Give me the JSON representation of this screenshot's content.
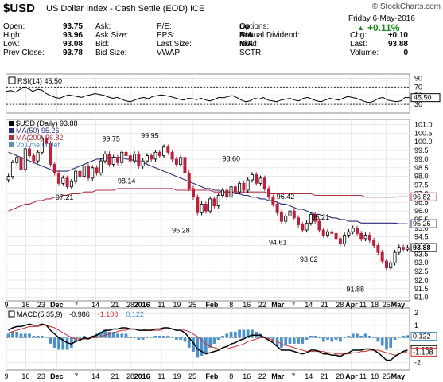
{
  "header": {
    "symbol": "$USD",
    "name": "US Dollar Index - Cash Settle (EOD)",
    "exchange": "ICE",
    "brand": "© StockCharts.com",
    "date": "Friday  6-May-2016",
    "change_pct": "+0.11%",
    "fields": [
      {
        "label": "Open:",
        "value": "93.75"
      },
      {
        "label": "High:",
        "value": "93.96"
      },
      {
        "label": "Low:",
        "value": "93.08"
      },
      {
        "label": "Prev Close:",
        "value": "93.78"
      },
      {
        "label": "Ask:",
        "value": ""
      },
      {
        "label": "Ask Size:",
        "value": ""
      },
      {
        "label": "Bid:",
        "value": ""
      },
      {
        "label": "Bid Size:",
        "value": ""
      },
      {
        "label": "P/E:",
        "value": ""
      },
      {
        "label": "EPS:",
        "value": ""
      },
      {
        "label": "Last Size:",
        "value": ""
      },
      {
        "label": "VWAP:",
        "value": ""
      },
      {
        "label": "Options:",
        "value": "no"
      },
      {
        "label": "Annual Dividend:",
        "value": "N/A"
      },
      {
        "label": "Yield:",
        "value": "N/A"
      },
      {
        "label": "SCTR:",
        "value": ""
      },
      {
        "label": "Chg:",
        "value": "+0.10"
      },
      {
        "label": "Last:",
        "value": "93.88"
      },
      {
        "label": "Volume:",
        "value": "0"
      }
    ]
  },
  "chart_data": [
    {
      "type": "line",
      "panel": "rsi",
      "legend": "RSI(14) 45.50",
      "ylim": [
        10,
        100
      ],
      "yticks": [
        30,
        50,
        70,
        90
      ],
      "ref_lines": [
        30,
        70
      ],
      "last_value": "45.50",
      "values": [
        60,
        62,
        58,
        64,
        70,
        66,
        60,
        65,
        63,
        55,
        50,
        46,
        44,
        48,
        52,
        50,
        48,
        46,
        50,
        52,
        55,
        53,
        51,
        47,
        44,
        46,
        42,
        38,
        36,
        40,
        44,
        46,
        43,
        48,
        50,
        52,
        50,
        48,
        45,
        42,
        40,
        44,
        43,
        41,
        44,
        40,
        38,
        42,
        46,
        45,
        48,
        50,
        46,
        40,
        36,
        38,
        44,
        42,
        46,
        40,
        38,
        36,
        40,
        42,
        44,
        40,
        38,
        44,
        46,
        42,
        38,
        36,
        40,
        44,
        42,
        40,
        44,
        48,
        46,
        44,
        40,
        36,
        34,
        38,
        44,
        46,
        40,
        38,
        36,
        38,
        46,
        45.5
      ]
    },
    {
      "type": "candlestick",
      "panel": "price",
      "legend": [
        "$USD (Daily) 93.88",
        "MA(50) 95.26",
        "MA(200) 96.82",
        "Volume undef"
      ],
      "ylim": [
        90.8,
        101.3
      ],
      "yticks": [
        91.0,
        91.5,
        92.0,
        92.5,
        93.0,
        93.5,
        94.0,
        94.5,
        95.0,
        95.5,
        96.0,
        96.5,
        97.0,
        97.5,
        98.0,
        98.5,
        99.0,
        99.5,
        100.0,
        100.5,
        101.0
      ],
      "annotations": [
        {
          "i": 15,
          "v": 97.21,
          "label": "97.21",
          "pos": "below"
        },
        {
          "i": 27,
          "v": 99.75,
          "label": "99.75",
          "pos": "above"
        },
        {
          "i": 31,
          "v": 98.14,
          "label": "98.14",
          "pos": "below"
        },
        {
          "i": 37,
          "v": 99.95,
          "label": "99.95",
          "pos": "above"
        },
        {
          "i": 45,
          "v": 95.28,
          "label": "95.28",
          "pos": "below"
        },
        {
          "i": 58,
          "v": 98.6,
          "label": "98.60",
          "pos": "above"
        },
        {
          "i": 70,
          "v": 94.61,
          "label": "94.61",
          "pos": "below"
        },
        {
          "i": 72,
          "v": 96.42,
          "label": "96.42",
          "pos": "above"
        },
        {
          "i": 78,
          "v": 93.62,
          "label": "93.62",
          "pos": "below"
        },
        {
          "i": 81,
          "v": 95.21,
          "label": "95.21",
          "pos": "above"
        },
        {
          "i": 90,
          "v": 91.88,
          "label": "91.88",
          "pos": "below"
        }
      ],
      "price_tags": [
        {
          "label": "96.82",
          "v": 96.82
        },
        {
          "label": "95.26",
          "v": 95.26
        },
        {
          "label": "93.88",
          "v": 93.88
        }
      ],
      "close": [
        98.0,
        98.8,
        99.1,
        98.4,
        99.6,
        99.2,
        98.9,
        99.4,
        100.2,
        99.9,
        98.7,
        98.2,
        97.6,
        97.9,
        97.4,
        97.7,
        98.3,
        98.0,
        98.6,
        97.9,
        98.5,
        98.2,
        98.9,
        99.3,
        98.7,
        99.1,
        98.8,
        99.4,
        99.2,
        98.9,
        99.3,
        98.6,
        98.9,
        99.2,
        99.0,
        99.4,
        99.2,
        99.7,
        99.4,
        99.0,
        98.7,
        99.1,
        98.2,
        97.3,
        96.8,
        95.9,
        96.4,
        96.0,
        96.7,
        96.3,
        96.9,
        97.2,
        96.8,
        97.4,
        97.1,
        97.6,
        97.2,
        97.8,
        98.1,
        97.6,
        97.9,
        97.3,
        96.8,
        96.4,
        95.9,
        95.4,
        95.7,
        96.0,
        95.6,
        95.2,
        94.9,
        95.3,
        95.8,
        95.4,
        94.9,
        94.6,
        94.8,
        94.7,
        94.4,
        94.1,
        94.6,
        94.8,
        95.0,
        94.7,
        94.4,
        94.6,
        94.3,
        94.0,
        93.6,
        93.1,
        92.7,
        93.0,
        93.6,
        93.9,
        93.78,
        93.88
      ],
      "ma50": [
        99.4,
        99.3,
        99.2,
        99.1,
        99.0,
        98.9,
        98.8,
        98.7,
        98.6,
        98.5,
        98.4,
        98.3,
        98.3,
        98.3,
        98.3,
        98.4,
        98.5,
        98.6,
        98.7,
        98.8,
        98.9,
        99.0,
        99.0,
        99.1,
        99.1,
        99.1,
        99.1,
        99.1,
        99.0,
        99.0,
        98.9,
        98.9,
        98.8,
        98.7,
        98.6,
        98.5,
        98.4,
        98.3,
        98.2,
        98.1,
        98.0,
        97.9,
        97.8,
        97.7,
        97.6,
        97.5,
        97.4,
        97.3,
        97.3,
        97.2,
        97.2,
        97.1,
        97.1,
        97.1,
        97.0,
        97.0,
        96.9,
        96.9,
        96.8,
        96.8,
        96.7,
        96.7,
        96.6,
        96.6,
        96.5,
        96.4,
        96.4,
        96.3,
        96.2,
        96.1,
        96.1,
        96.0,
        95.9,
        95.8,
        95.8,
        95.7,
        95.7,
        95.6,
        95.6,
        95.5,
        95.5,
        95.4,
        95.4,
        95.4,
        95.3,
        95.3,
        95.3,
        95.3,
        95.3,
        95.3,
        95.3,
        95.3,
        95.3,
        95.26,
        95.26,
        95.26
      ],
      "ma200": [
        96.0,
        96.1,
        96.2,
        96.3,
        96.4,
        96.4,
        96.5,
        96.6,
        96.6,
        96.7,
        96.7,
        96.8,
        96.8,
        96.9,
        96.9,
        97.0,
        97.0,
        97.0,
        97.1,
        97.1,
        97.1,
        97.2,
        97.2,
        97.2,
        97.2,
        97.2,
        97.3,
        97.3,
        97.3,
        97.3,
        97.3,
        97.3,
        97.3,
        97.3,
        97.3,
        97.3,
        97.3,
        97.3,
        97.3,
        97.3,
        97.2,
        97.2,
        97.2,
        97.2,
        97.2,
        97.2,
        97.2,
        97.2,
        97.2,
        97.1,
        97.1,
        97.1,
        97.1,
        97.1,
        97.1,
        97.1,
        97.1,
        97.1,
        97.1,
        97.1,
        97.1,
        97.1,
        97.0,
        97.0,
        97.0,
        97.0,
        97.0,
        97.0,
        97.0,
        97.0,
        97.0,
        97.0,
        97.0,
        96.9,
        96.9,
        96.9,
        96.9,
        96.9,
        96.9,
        96.9,
        96.9,
        96.9,
        96.9,
        96.9,
        96.9,
        96.8,
        96.8,
        96.8,
        96.8,
        96.8,
        96.8,
        96.8,
        96.8,
        96.82,
        96.82,
        96.82
      ]
    },
    {
      "type": "line",
      "panel": "macd",
      "legend": [
        "MACD(5,35,9)",
        "-0.986",
        "-1.108",
        "0.122"
      ],
      "ylim": [
        -2.6,
        2.4
      ],
      "yticks": [
        -2,
        -1,
        0,
        1,
        2
      ],
      "price_tags": [
        {
          "label": "0.122",
          "v": 0.122
        },
        {
          "label": "-0.986",
          "v": -0.95
        },
        {
          "label": "-1.108",
          "v": -1.15
        }
      ],
      "macd": [
        0.6,
        0.8,
        0.9,
        0.9,
        1.0,
        1.1,
        1.0,
        1.0,
        1.1,
        1.0,
        0.6,
        0.3,
        0.0,
        -0.2,
        -0.4,
        -0.5,
        -0.3,
        -0.2,
        0.0,
        -0.1,
        0.1,
        0.2,
        0.4,
        0.6,
        0.6,
        0.7,
        0.7,
        0.8,
        0.8,
        0.7,
        0.7,
        0.6,
        0.6,
        0.6,
        0.6,
        0.7,
        0.7,
        0.8,
        0.8,
        0.7,
        0.6,
        0.6,
        0.4,
        0.0,
        -0.4,
        -0.9,
        -1.1,
        -1.3,
        -1.2,
        -1.1,
        -1.0,
        -0.8,
        -0.7,
        -0.5,
        -0.4,
        -0.2,
        -0.1,
        0.1,
        0.2,
        0.2,
        0.2,
        0.0,
        -0.2,
        -0.4,
        -0.7,
        -1.0,
        -1.0,
        -1.0,
        -1.1,
        -1.2,
        -1.3,
        -1.2,
        -1.0,
        -1.0,
        -1.1,
        -1.3,
        -1.3,
        -1.4,
        -1.4,
        -1.5,
        -1.3,
        -1.2,
        -1.0,
        -1.0,
        -1.0,
        -0.9,
        -0.9,
        -1.0,
        -1.2,
        -1.5,
        -1.8,
        -1.8,
        -1.5,
        -1.3,
        -1.1,
        -0.986
      ],
      "signal": [
        0.4,
        0.5,
        0.6,
        0.7,
        0.8,
        0.9,
        0.9,
        0.9,
        1.0,
        1.0,
        0.9,
        0.8,
        0.6,
        0.4,
        0.2,
        0.0,
        -0.1,
        -0.1,
        -0.1,
        -0.1,
        0.0,
        0.0,
        0.1,
        0.2,
        0.3,
        0.4,
        0.5,
        0.6,
        0.6,
        0.7,
        0.7,
        0.7,
        0.7,
        0.6,
        0.6,
        0.6,
        0.6,
        0.7,
        0.7,
        0.7,
        0.7,
        0.7,
        0.6,
        0.5,
        0.3,
        0.1,
        -0.2,
        -0.5,
        -0.7,
        -0.8,
        -0.9,
        -0.9,
        -0.9,
        -0.8,
        -0.7,
        -0.6,
        -0.5,
        -0.3,
        -0.2,
        -0.1,
        0.0,
        0.0,
        -0.1,
        -0.2,
        -0.3,
        -0.5,
        -0.6,
        -0.7,
        -0.8,
        -0.9,
        -1.0,
        -1.1,
        -1.1,
        -1.1,
        -1.1,
        -1.1,
        -1.2,
        -1.2,
        -1.3,
        -1.3,
        -1.3,
        -1.3,
        -1.2,
        -1.2,
        -1.1,
        -1.1,
        -1.0,
        -1.0,
        -1.0,
        -1.1,
        -1.2,
        -1.3,
        -1.4,
        -1.3,
        -1.2,
        -1.108
      ]
    },
    {
      "type": "axis",
      "panel": "dates",
      "ticks": [
        {
          "i": 0,
          "label": "9",
          "bold": false
        },
        {
          "i": 5,
          "label": "16",
          "bold": false
        },
        {
          "i": 9,
          "label": "23",
          "bold": false
        },
        {
          "i": 13,
          "label": "Dec",
          "bold": true
        },
        {
          "i": 18,
          "label": "7",
          "bold": false
        },
        {
          "i": 23,
          "label": "14",
          "bold": false
        },
        {
          "i": 28,
          "label": "21",
          "bold": false
        },
        {
          "i": 32,
          "label": "28",
          "bold": false
        },
        {
          "i": 35,
          "label": "2016",
          "bold": true
        },
        {
          "i": 40,
          "label": "11",
          "bold": false
        },
        {
          "i": 44,
          "label": "19",
          "bold": false
        },
        {
          "i": 48,
          "label": "25",
          "bold": false
        },
        {
          "i": 53,
          "label": "Feb",
          "bold": true
        },
        {
          "i": 58,
          "label": "8",
          "bold": false
        },
        {
          "i": 62,
          "label": "16",
          "bold": false
        },
        {
          "i": 66,
          "label": "22",
          "bold": false
        },
        {
          "i": 70,
          "label": "Mar",
          "bold": true
        },
        {
          "i": 74,
          "label": "7",
          "bold": false
        },
        {
          "i": 78,
          "label": "14",
          "bold": false
        },
        {
          "i": 82,
          "label": "21",
          "bold": false
        },
        {
          "i": 86,
          "label": "28",
          "bold": false
        },
        {
          "i": 89,
          "label": "Apr",
          "bold": true
        },
        {
          "i": 92,
          "label": "11",
          "bold": false
        },
        {
          "i": 95,
          "label": "18",
          "bold": false
        },
        {
          "i": 98,
          "label": "25",
          "bold": false
        },
        {
          "i": 101,
          "label": "May",
          "bold": true
        }
      ]
    }
  ]
}
